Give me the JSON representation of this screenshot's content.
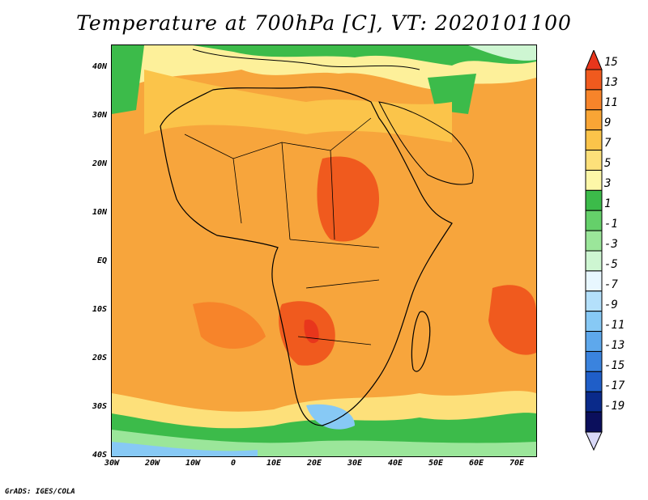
{
  "title": "Temperature at 700hPa [C], VT: 2020101100",
  "footer": "GrADS: IGES/COLA",
  "lat_labels": [
    "40N",
    "30N",
    "20N",
    "10N",
    "EQ",
    "10S",
    "20S",
    "30S",
    "40S"
  ],
  "lon_labels": [
    "30W",
    "20W",
    "10W",
    "0",
    "10E",
    "20E",
    "30E",
    "40E",
    "50E",
    "60E",
    "70E"
  ],
  "colorbar": {
    "labels": [
      "15",
      "13",
      "11",
      "9",
      "7",
      "5",
      "3",
      "1",
      "-1",
      "-3",
      "-5",
      "-7",
      "-9",
      "-11",
      "-13",
      "-15",
      "-17",
      "-19"
    ],
    "colors": [
      "#e8361c",
      "#f05a1e",
      "#f7842a",
      "#f9a535",
      "#fbc44a",
      "#fde07a",
      "#fdf7a8",
      "#3cbb4a",
      "#65d06a",
      "#9be69a",
      "#cef6d2",
      "#e8f7ff",
      "#b4e0fb",
      "#87c9f5",
      "#5ea8ec",
      "#3a83de",
      "#1f5ec8",
      "#0a2a8a",
      "#0b0f5c",
      "#d9d9f7"
    ]
  },
  "map": {
    "extent": {
      "lon_min": -30,
      "lon_max": 75,
      "lat_min": -40,
      "lat_max": 45
    },
    "units": "C",
    "level": "700hPa",
    "valid_time": "2020101100"
  },
  "colors": {
    "background": "#ffffff",
    "frame": "#000000"
  }
}
